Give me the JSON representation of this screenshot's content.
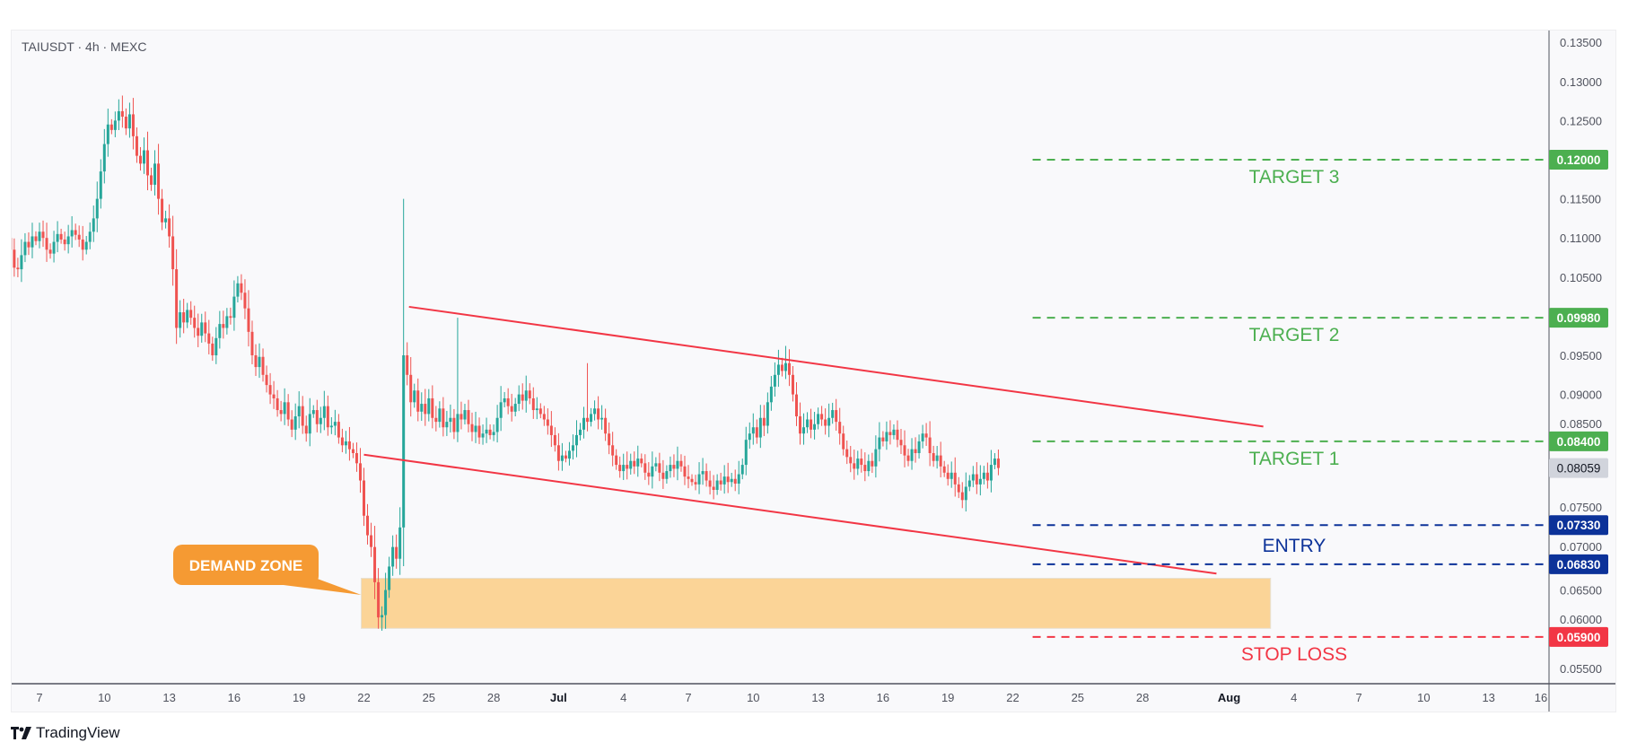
{
  "header": {
    "symbol_line": "TAIUSDT · 4h · MEXC"
  },
  "branding": {
    "logo_text": "TradingView"
  },
  "colors": {
    "up": "#26a69a",
    "down": "#ef5350",
    "target": "#4caf50",
    "entry": "#0c3299",
    "stop": "#f23645",
    "trendline": "#f23645",
    "zone": "#fbd497",
    "callout": "#f59a33",
    "last_price_bg": "#d1d4dc"
  },
  "chart_data": {
    "type": "candlestick",
    "title": "TAIUSDT · 4h · MEXC",
    "timeframe": "4h",
    "first_candle": "06-05 16:00",
    "ylim": [
      0.0535,
      0.1365
    ],
    "grid": false,
    "closes": [
      0.1085,
      0.1062,
      0.106,
      0.1078,
      0.1095,
      0.1088,
      0.1102,
      0.1096,
      0.1108,
      0.11,
      0.1085,
      0.108,
      0.1095,
      0.1105,
      0.1098,
      0.1092,
      0.1102,
      0.111,
      0.1104,
      0.1098,
      0.1085,
      0.1095,
      0.1108,
      0.1125,
      0.115,
      0.1185,
      0.122,
      0.1245,
      0.1238,
      0.125,
      0.1262,
      0.1255,
      0.124,
      0.1258,
      0.123,
      0.1205,
      0.1195,
      0.1212,
      0.118,
      0.1168,
      0.1195,
      0.115,
      0.112,
      0.1125,
      0.1102,
      0.106,
      0.0985,
      0.1005,
      0.0992,
      0.1008,
      0.0998,
      0.0985,
      0.0975,
      0.0992,
      0.0978,
      0.0965,
      0.095,
      0.0972,
      0.099,
      0.0985,
      0.1,
      0.0998,
      0.1025,
      0.1042,
      0.103,
      0.101,
      0.098,
      0.095,
      0.0935,
      0.0948,
      0.0925,
      0.0912,
      0.09,
      0.0895,
      0.088,
      0.0875,
      0.089,
      0.0868,
      0.0855,
      0.0872,
      0.0885,
      0.086,
      0.085,
      0.0875,
      0.088,
      0.0862,
      0.087,
      0.0885,
      0.0858,
      0.086,
      0.0865,
      0.0845,
      0.0835,
      0.084,
      0.083,
      0.0825,
      0.0812,
      0.079,
      0.0745,
      0.072,
      0.0705,
      0.066,
      0.0615,
      0.0618,
      0.065,
      0.068,
      0.0705,
      0.069,
      0.073,
      0.095,
      0.0925,
      0.089,
      0.0905,
      0.0878,
      0.0888,
      0.0875,
      0.0895,
      0.087,
      0.0865,
      0.0882,
      0.0858,
      0.0865,
      0.087,
      0.0852,
      0.0875,
      0.0868,
      0.088,
      0.0862,
      0.0852,
      0.086,
      0.0845,
      0.085,
      0.0855,
      0.0848,
      0.0852,
      0.087,
      0.089,
      0.0895,
      0.0885,
      0.0878,
      0.0888,
      0.09,
      0.0892,
      0.0905,
      0.0895,
      0.088,
      0.0882,
      0.0875,
      0.0868,
      0.086,
      0.0848,
      0.0835,
      0.0815,
      0.0822,
      0.0818,
      0.0828,
      0.0835,
      0.0848,
      0.0855,
      0.087,
      0.0865,
      0.0875,
      0.0882,
      0.0868,
      0.087,
      0.085,
      0.0835,
      0.0822,
      0.081,
      0.0802,
      0.081,
      0.0805,
      0.0815,
      0.0808,
      0.0818,
      0.0812,
      0.08,
      0.0795,
      0.0808,
      0.0812,
      0.08,
      0.0792,
      0.0802,
      0.081,
      0.0805,
      0.0815,
      0.0808,
      0.0795,
      0.0792,
      0.0788,
      0.0785,
      0.0798,
      0.0802,
      0.079,
      0.0782,
      0.0778,
      0.079,
      0.0785,
      0.0795,
      0.0788,
      0.0792,
      0.0786,
      0.0798,
      0.081,
      0.0842,
      0.085,
      0.0858,
      0.0845,
      0.087,
      0.086,
      0.089,
      0.091,
      0.0925,
      0.0938,
      0.093,
      0.094,
      0.0925,
      0.09,
      0.0872,
      0.085,
      0.0858,
      0.0868,
      0.0855,
      0.0862,
      0.0875,
      0.0868,
      0.086,
      0.087,
      0.088,
      0.0865,
      0.085,
      0.083,
      0.082,
      0.0812,
      0.0805,
      0.0818,
      0.081,
      0.0802,
      0.0815,
      0.0808,
      0.083,
      0.0845,
      0.084,
      0.0852,
      0.0848,
      0.0855,
      0.0842,
      0.0835,
      0.0822,
      0.0815,
      0.083,
      0.0825,
      0.084,
      0.085,
      0.0845,
      0.0825,
      0.0815,
      0.0822,
      0.0808,
      0.08,
      0.0792,
      0.08,
      0.0785,
      0.0775,
      0.0765,
      0.0782,
      0.079,
      0.0798,
      0.0785,
      0.0792,
      0.08,
      0.079,
      0.081,
      0.0818,
      0.0806
    ],
    "extreme_wicks": [
      {
        "time": "06-10 20:00",
        "high": 0.1282
      },
      {
        "time": "06-22 20:00",
        "low": 0.0598
      },
      {
        "time": "06-23 20:00",
        "high": 0.115
      },
      {
        "time": "06-26 08:00",
        "high": 0.0998
      },
      {
        "time": "07-02 08:00",
        "high": 0.094
      },
      {
        "time": "07-11 12:00",
        "high": 0.0962
      }
    ],
    "last_price": "0.08059",
    "price_ticks": [
      "0.05500",
      "0.06000",
      "0.06500",
      "0.07000",
      "0.07500",
      "0.08500",
      "0.09000",
      "0.09500",
      "0.10500",
      "0.11000",
      "0.11500",
      "0.12500",
      "0.13000",
      "0.13500"
    ],
    "time_ticks": [
      {
        "label": "7",
        "date": "06-07"
      },
      {
        "label": "10",
        "date": "06-10"
      },
      {
        "label": "13",
        "date": "06-13"
      },
      {
        "label": "16",
        "date": "06-16"
      },
      {
        "label": "19",
        "date": "06-19"
      },
      {
        "label": "22",
        "date": "06-22"
      },
      {
        "label": "25",
        "date": "06-25"
      },
      {
        "label": "28",
        "date": "06-28"
      },
      {
        "label": "Jul",
        "date": "07-01"
      },
      {
        "label": "4",
        "date": "07-04"
      },
      {
        "label": "7",
        "date": "07-07"
      },
      {
        "label": "10",
        "date": "07-10"
      },
      {
        "label": "13",
        "date": "07-13"
      },
      {
        "label": "16",
        "date": "07-16"
      },
      {
        "label": "19",
        "date": "07-19"
      },
      {
        "label": "22",
        "date": "07-22"
      },
      {
        "label": "25",
        "date": "07-25"
      },
      {
        "label": "28",
        "date": "07-28"
      },
      {
        "label": "Aug",
        "date": "08-01"
      },
      {
        "label": "4",
        "date": "08-04"
      },
      {
        "label": "7",
        "date": "08-07"
      },
      {
        "label": "10",
        "date": "08-10"
      },
      {
        "label": "13",
        "date": "08-13"
      },
      {
        "label": "16",
        "date": "08-16"
      }
    ],
    "levels": [
      {
        "name": "TARGET 3",
        "price": 0.12,
        "label": "0.12000",
        "kind": "target"
      },
      {
        "name": "TARGET 2",
        "price": 0.0998,
        "label": "0.09980",
        "kind": "target"
      },
      {
        "name": "TARGET 1",
        "price": 0.084,
        "label": "0.08400",
        "kind": "target"
      },
      {
        "name": "",
        "price": 0.0733,
        "label": "0.07330",
        "kind": "entry"
      },
      {
        "name": "",
        "price": 0.0683,
        "label": "0.06830",
        "kind": "entry"
      },
      {
        "name": "STOP LOSS",
        "price": 0.059,
        "label": "0.05900",
        "kind": "stop"
      }
    ],
    "entry_label": "ENTRY",
    "levels_start": "07-22 22:00",
    "trendlines": [
      {
        "from": {
          "time": "06-24 02:00",
          "price": 0.1012
        },
        "to": {
          "time": "08-02 14:00",
          "price": 0.0859
        }
      },
      {
        "from": {
          "time": "06-22 00:00",
          "price": 0.0823
        },
        "to": {
          "time": "07-31 10:00",
          "price": 0.0671
        }
      }
    ],
    "demand_zone": {
      "label": "DEMAND ZONE",
      "from": "06-21 21:00",
      "to": "08-02 22:00",
      "top": 0.0665,
      "bottom": 0.0601
    }
  }
}
